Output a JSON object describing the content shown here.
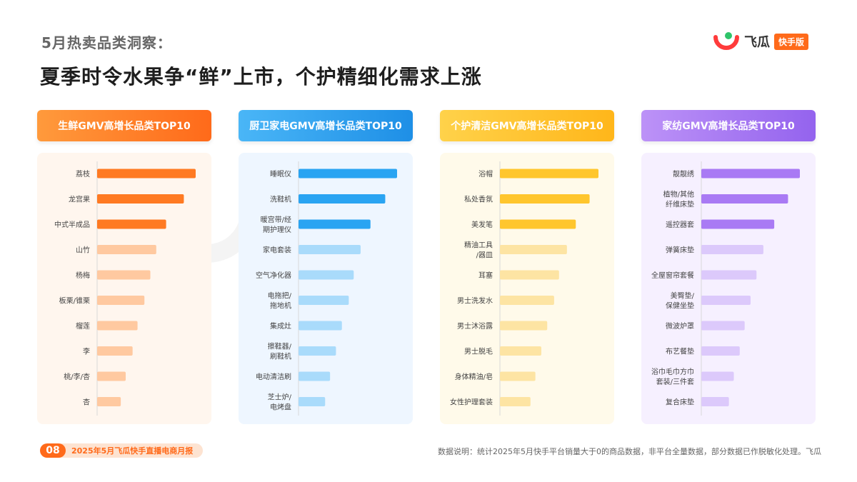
{
  "header": {
    "subtitle": "5月热卖品类洞察：",
    "title": "夏季时令水果争“鲜”上市，个护精细化需求上涨"
  },
  "logo": {
    "name": "飞瓜",
    "tag": "快手版",
    "icon": "feigua-logo-icon"
  },
  "watermark": {
    "text": "飞瓜 快手版"
  },
  "colors": {
    "orange": "#ff7a22",
    "blue": "#2aa4f2",
    "yellow": "#ffc62d",
    "purple": "#a97af4"
  },
  "chart_data": [
    {
      "type": "bar",
      "title": "生鲜GMV高增长品类TOP10",
      "categories": [
        "荔枝",
        "龙宫果",
        "中式半成品",
        "山竹",
        "杨梅",
        "板栗/锥栗",
        "榴莲",
        "李",
        "桃/李/杏",
        "杏"
      ],
      "values": [
        100,
        88,
        70,
        60,
        54,
        48,
        41,
        36,
        29,
        24
      ],
      "color_strong": "#ff7a22",
      "color_light": "#ffc9a0"
    },
    {
      "type": "bar",
      "title": "厨卫家电GMV高增长品类TOP10",
      "categories": [
        "睡眠仪",
        "洗鞋机",
        "暖宫带/经期护理仪",
        "家电套装",
        "空气净化器",
        "电拖把/拖地机",
        "集成灶",
        "擦鞋器/刷鞋机",
        "电动清洁刷",
        "芝士炉/电烤盘"
      ],
      "values": [
        100,
        88,
        73,
        63,
        56,
        51,
        44,
        38,
        32,
        27
      ],
      "color_strong": "#2aa4f2",
      "color_light": "#a9dbfb"
    },
    {
      "type": "bar",
      "title": "个护清洁GMV高增长品类TOP10",
      "categories": [
        "浴帽",
        "私处香氛",
        "美发笔",
        "精油工具/器皿",
        "耳塞",
        "男士洗发水",
        "男士沐浴露",
        "男士脱毛",
        "身体精油/皂",
        "女性护理套装"
      ],
      "values": [
        100,
        91,
        77,
        68,
        60,
        55,
        48,
        42,
        36,
        31
      ],
      "color_strong": "#ffc62d",
      "color_light": "#fde4a3"
    },
    {
      "type": "bar",
      "title": "家纺GMV高增长品类TOP10",
      "categories": [
        "靓靓绣",
        "植物/其他纤维床垫",
        "遥控器套",
        "弹簧床垫",
        "全屋窗帘套餐",
        "美臀垫/保健坐垫",
        "微波炉罩",
        "布艺餐垫",
        "浴巾毛巾方巾套装/三件套",
        "复合床垫"
      ],
      "values": [
        100,
        88,
        74,
        63,
        56,
        50,
        44,
        39,
        33,
        28
      ],
      "color_strong": "#a97af4",
      "color_light": "#dcc9fb"
    }
  ],
  "footer": {
    "page_number": "08",
    "report_name": "2025年5月飞瓜快手直播电商月报",
    "note": "数据说明：统计2025年5月快手平台销量大于0的商品数据，非平台全量数据，部分数据已作脱敏化处理。飞瓜"
  }
}
